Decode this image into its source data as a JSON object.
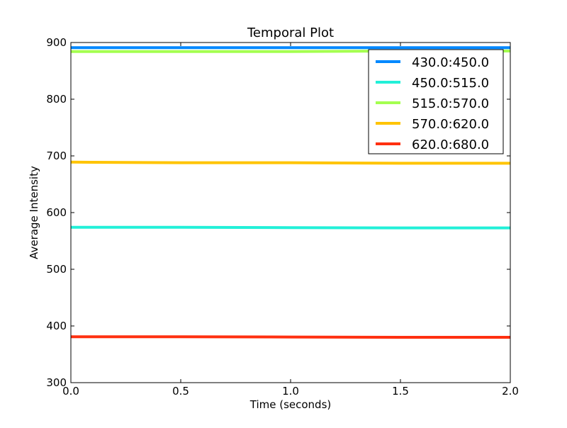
{
  "chart_data": {
    "type": "line",
    "title": "Temporal Plot",
    "xlabel": "Time (seconds)",
    "ylabel": "Average Intensity",
    "xlim": [
      0.0,
      2.0
    ],
    "ylim": [
      300,
      900
    ],
    "xticks": [
      "0.0",
      "0.5",
      "1.0",
      "1.5",
      "2.0"
    ],
    "yticks": [
      "300",
      "400",
      "500",
      "600",
      "700",
      "800",
      "900"
    ],
    "grid": false,
    "legend_position": "top-right",
    "series": [
      {
        "name": "430.0:450.0",
        "color": "#0088ff",
        "x": [
          0.0,
          0.5,
          1.0,
          1.5,
          2.0
        ],
        "y": [
          891,
          891,
          891,
          891,
          891
        ]
      },
      {
        "name": "450.0:515.0",
        "color": "#22f0d8",
        "x": [
          0.0,
          0.5,
          1.0,
          1.5,
          2.0
        ],
        "y": [
          574,
          574,
          573.5,
          573,
          573
        ]
      },
      {
        "name": "515.0:570.0",
        "color": "#a4ff50",
        "x": [
          0.0,
          0.5,
          1.0,
          1.5,
          2.0
        ],
        "y": [
          884,
          884,
          884,
          885,
          885
        ]
      },
      {
        "name": "570.0:620.0",
        "color": "#ffc400",
        "x": [
          0.0,
          0.5,
          1.0,
          1.5,
          2.0
        ],
        "y": [
          689,
          688,
          688,
          687,
          687
        ]
      },
      {
        "name": "620.0:680.0",
        "color": "#ff3010",
        "x": [
          0.0,
          0.5,
          1.0,
          1.5,
          2.0
        ],
        "y": [
          381,
          381,
          380.5,
          380,
          380
        ]
      }
    ]
  }
}
